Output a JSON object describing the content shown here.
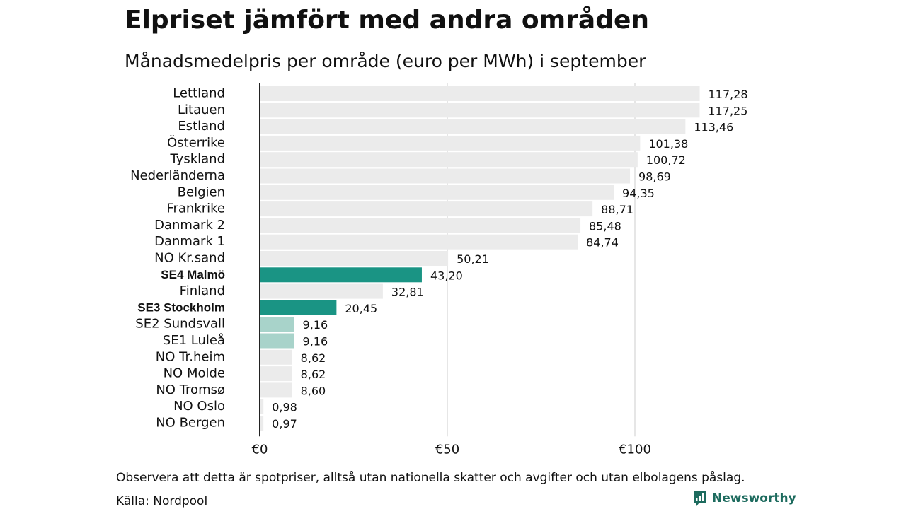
{
  "title": "Elpriset jämfört med andra områden",
  "chart_data": {
    "type": "bar",
    "orientation": "horizontal",
    "subtitle": "Månadsmedelpris per område (euro per MWh) i september",
    "categories": [
      "Lettland",
      "Litauen",
      "Estland",
      "Österrike",
      "Tyskland",
      "Nederländerna",
      "Belgien",
      "Frankrike",
      "Danmark  2",
      "Danmark  1",
      "NO Kr.sand",
      "SE4 Malmö",
      "Finland",
      "SE3 Stockholm",
      "SE2  Sundsvall",
      "SE1  Luleå",
      "NO Tr.heim",
      "NO Molde",
      "NO Tromsø",
      "NO Oslo",
      "NO Bergen"
    ],
    "values": [
      117.28,
      117.25,
      113.46,
      101.38,
      100.72,
      98.69,
      94.35,
      88.71,
      85.48,
      84.74,
      50.21,
      43.2,
      32.81,
      20.45,
      9.16,
      9.16,
      8.62,
      8.62,
      8.6,
      0.98,
      0.97
    ],
    "value_labels": [
      "117,28",
      "117,25",
      "113,46",
      "101,38",
      "100,72",
      "98,69",
      "94,35",
      "88,71",
      "85,48",
      "84,74",
      "50,21",
      "43,20",
      "32,81",
      "20,45",
      "9,16",
      "9,16",
      "8,62",
      "8,62",
      "8,60",
      "0,98",
      "0,97"
    ],
    "highlight": [
      "other",
      "other",
      "other",
      "other",
      "other",
      "other",
      "other",
      "other",
      "other",
      "other",
      "other",
      "strong",
      "other",
      "strong",
      "light",
      "light",
      "other",
      "other",
      "other",
      "other",
      "other"
    ],
    "bold_labels": [
      "SE4 Malmö",
      "SE3 Stockholm"
    ],
    "xlim": [
      0,
      130
    ],
    "xticks": [
      0,
      50,
      100
    ],
    "xtick_labels": [
      "€0",
      "€50",
      "€100"
    ],
    "grid": true,
    "colors": {
      "other": "#ebebeb",
      "strong": "#1a9484",
      "light": "#a8d3ca",
      "grid": "#cccccc",
      "axis": "#222222"
    }
  },
  "footer": {
    "note": "Observera att detta är spotpriser, alltså utan nationella skatter och avgifter och utan elbolagens påslag.",
    "source": "Källa: Nordpool",
    "brand": "Newsworthy",
    "brand_icon": "newsworthy-logo-icon"
  }
}
